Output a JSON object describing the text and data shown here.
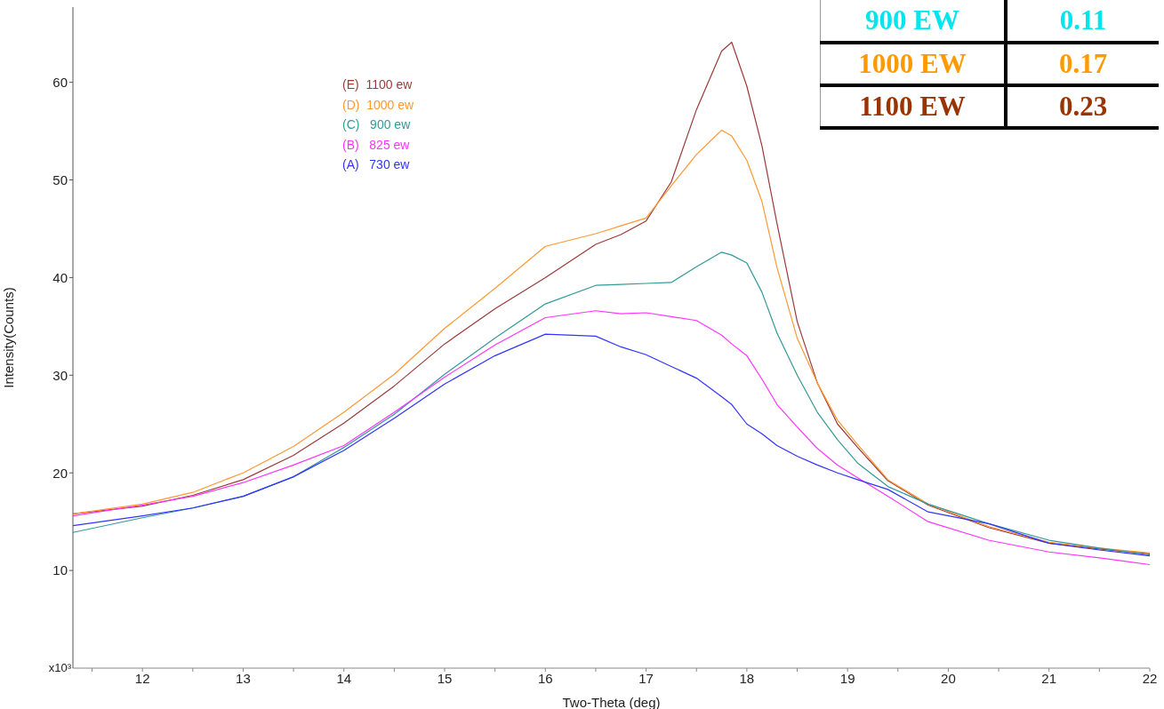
{
  "chart_data": {
    "type": "line",
    "xlabel": "Two-Theta (deg)",
    "ylabel": "Intensity(Counts)",
    "annotations": [
      "x10³",
      "900 EW",
      "0.11",
      "1000 EW",
      "0.17",
      "1100 EW",
      "0.23"
    ],
    "x": [
      11.31,
      12,
      12.5,
      13,
      13.5,
      14,
      14.5,
      15,
      15.5,
      16,
      16.5,
      16.75,
      17,
      17.25,
      17.5,
      17.75,
      17.85,
      18,
      18.15,
      18.3,
      18.5,
      18.7,
      18.9,
      19.1,
      19.4,
      19.8,
      20.4,
      21,
      21.5,
      22
    ],
    "series": [
      {
        "name": "(E)  1100 ew",
        "color": "#9b3a3a",
        "values": [
          15.8,
          16.6,
          17.7,
          19.3,
          21.8,
          25.1,
          28.9,
          33.2,
          36.8,
          40.0,
          43.4,
          44.4,
          45.8,
          49.8,
          57.2,
          63.2,
          64.1,
          59.6,
          53.5,
          45.5,
          35.5,
          29.2,
          25.0,
          22.6,
          19.2,
          16.7,
          14.4,
          12.8,
          12.2,
          11.7
        ]
      },
      {
        "name": "(D)  1000 ew",
        "color": "#ff9933",
        "values": [
          15.8,
          16.8,
          18.0,
          20.0,
          22.7,
          26.2,
          30.1,
          34.8,
          38.9,
          43.2,
          44.5,
          45.3,
          46.1,
          49.4,
          52.6,
          55.1,
          54.5,
          52.0,
          47.8,
          41.0,
          33.8,
          29.2,
          25.4,
          22.9,
          19.3,
          16.8,
          14.5,
          12.9,
          12.3,
          11.8
        ]
      },
      {
        "name": "(C)   900 ew",
        "color": "#339999",
        "values": [
          13.9,
          15.4,
          16.4,
          17.6,
          19.6,
          22.6,
          26.0,
          30.1,
          33.8,
          37.3,
          39.2,
          39.3,
          39.4,
          39.5,
          41.1,
          42.6,
          42.3,
          41.5,
          38.5,
          34.3,
          30.0,
          26.2,
          23.4,
          21.0,
          18.6,
          16.8,
          14.8,
          13.1,
          12.3,
          11.6
        ]
      },
      {
        "name": "(B)   825 ew",
        "color": "#ff33ff",
        "values": [
          15.6,
          16.7,
          17.6,
          19.0,
          20.8,
          22.8,
          26.2,
          29.8,
          33.1,
          35.9,
          36.6,
          36.3,
          36.4,
          36.0,
          35.6,
          34.1,
          33.2,
          32.0,
          29.6,
          27.0,
          24.7,
          22.5,
          20.8,
          19.5,
          17.6,
          15.0,
          13.1,
          11.9,
          11.3,
          10.6
        ]
      },
      {
        "name": "(A)   730 ew",
        "color": "#3333ff",
        "values": [
          14.6,
          15.6,
          16.4,
          17.6,
          19.6,
          22.3,
          25.6,
          29.1,
          32.0,
          34.2,
          34.0,
          32.9,
          32.1,
          30.9,
          29.7,
          27.8,
          27.0,
          25.0,
          24.0,
          22.8,
          21.7,
          20.8,
          20.0,
          19.3,
          18.3,
          16.0,
          14.8,
          12.8,
          12.1,
          11.5
        ]
      }
    ],
    "xlim": [
      11.31,
      22
    ],
    "xticks": [
      {
        "value": 11.5,
        "label": null
      },
      12,
      {
        "value": 12.5,
        "label": null
      },
      13,
      {
        "value": 13.5,
        "label": null
      },
      14,
      {
        "value": 14.5,
        "label": null
      },
      15,
      {
        "value": 15.5,
        "label": null
      },
      16,
      {
        "value": 16.5,
        "label": null
      },
      17,
      {
        "value": 17.5,
        "label": null
      },
      18,
      {
        "value": 18.5,
        "label": null
      },
      19,
      {
        "value": 19.5,
        "label": null
      },
      20,
      {
        "value": 20.5,
        "label": null
      },
      21,
      {
        "value": 21.5,
        "label": null
      },
      22
    ],
    "ylim": [
      0,
      67.7
    ],
    "yticks": [
      10,
      20,
      30,
      40,
      50,
      60
    ],
    "grid": false,
    "legend": "top left",
    "marker": "none",
    "line_style": "solid"
  }
}
